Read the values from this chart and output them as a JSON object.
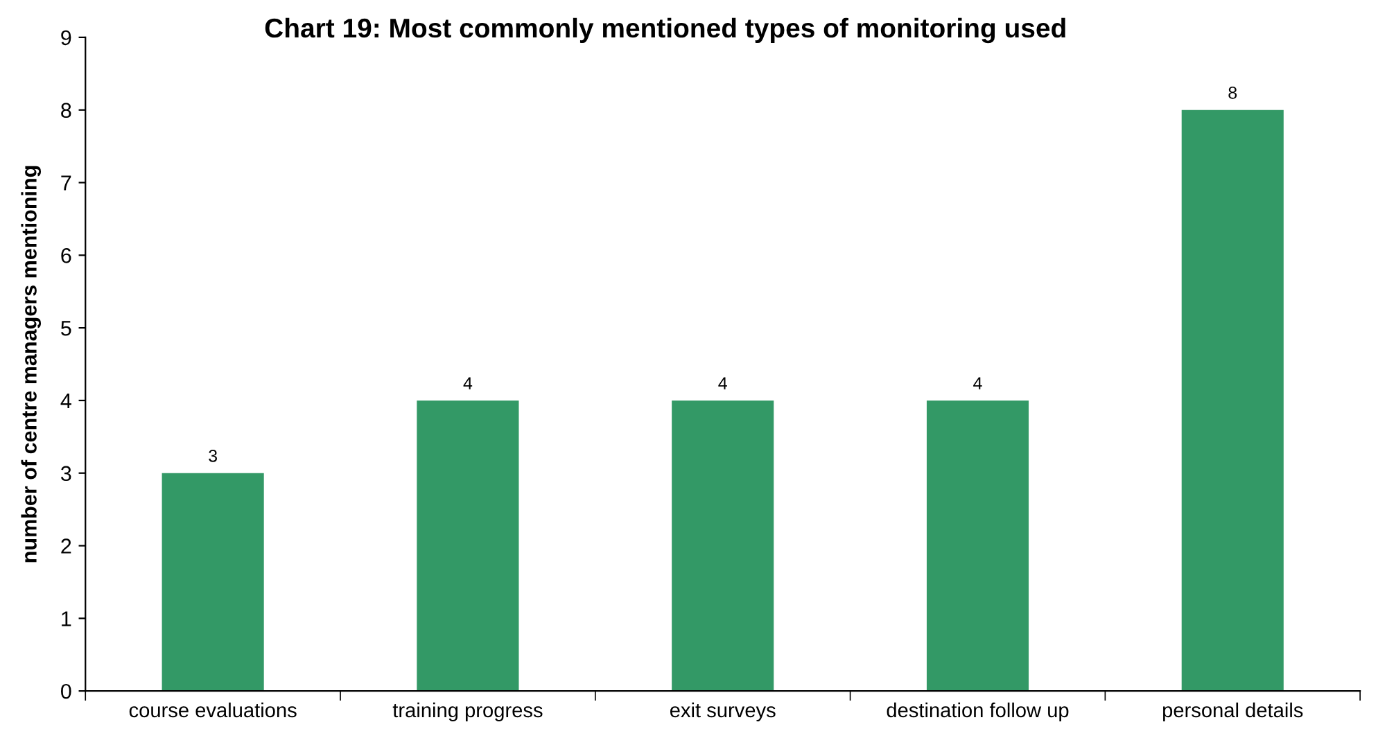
{
  "chart_data": {
    "type": "bar",
    "title": "Chart 19: Most commonly mentioned types of monitoring used",
    "ylabel": "number of centre managers mentioning",
    "categories": [
      "course evaluations",
      "training progress",
      "exit surveys",
      "destination follow up",
      "personal details"
    ],
    "values": [
      3,
      4,
      4,
      4,
      8
    ],
    "color": "#339966",
    "ylim": [
      0,
      9
    ],
    "yticks": [
      0,
      1,
      2,
      3,
      4,
      5,
      6,
      7,
      8,
      9
    ],
    "grid": false,
    "data_labels": true
  }
}
